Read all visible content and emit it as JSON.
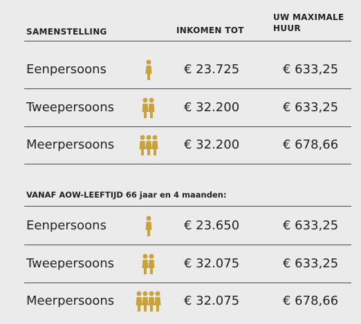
{
  "header": {
    "columns": [
      "SAMENSTELLING",
      "INKOMEN TOT",
      "UW MAXIMALE HUUR"
    ]
  },
  "table": {
    "rows": [
      [
        "Eenpersoons",
        "€ 23.725",
        "€ 633,25"
      ],
      [
        "Tweepersoons",
        "€ 32.200",
        "€ 633,25"
      ],
      [
        "Meerpersoons",
        "€ 32.200",
        "€ 678,66"
      ]
    ]
  },
  "section": {
    "title": "VANAF AOW-LEEFTIJD 66 jaar en 4 maanden:",
    "rows": [
      [
        "Eenpersoons",
        "€ 23.650",
        "€ 633,25"
      ],
      [
        "Tweepersoons",
        "€ 32.075",
        "€ 633,25"
      ],
      [
        "Meerpersoons",
        "€ 32.075",
        "€ 678,66"
      ]
    ]
  }
}
